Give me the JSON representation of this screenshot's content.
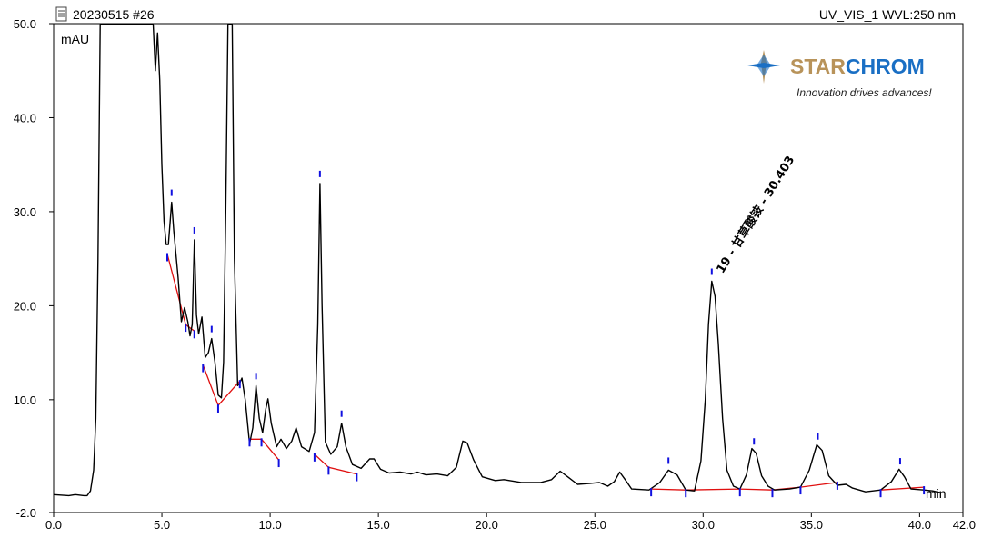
{
  "chart_data": {
    "type": "line",
    "sample_id": "20230515 #26",
    "channel": "UV_VIS_1 WVL:250 nm",
    "ylabel": "mAU",
    "xlabel": "min",
    "xlim": [
      0,
      42.0
    ],
    "ylim": [
      -2.0,
      50.0
    ],
    "x_ticks": [
      "0.0",
      "5.0",
      "10.0",
      "15.0",
      "20.0",
      "25.0",
      "30.0",
      "35.0",
      "40.0",
      "42.0"
    ],
    "y_ticks": [
      "-2.0",
      "10.0",
      "20.0",
      "30.0",
      "40.0",
      "50.0"
    ],
    "colors": {
      "trace": "#000000",
      "baseline": "#e01010",
      "marker": "#1010e0",
      "logo_gold": "#b8935a",
      "logo_blue": "#1a6fc4"
    },
    "logo": {
      "part1": "STAR",
      "part2": "CHROM",
      "tagline": "Innovation drives advances!"
    },
    "annotated_peak": {
      "label": "19 - 甘草酸铵 - 30.403",
      "rt": 30.403,
      "height": 22.6
    },
    "series": [
      {
        "points": [
          [
            0,
            -0.1
          ],
          [
            0.7,
            -0.2
          ],
          [
            1.0,
            -0.1
          ],
          [
            1.4,
            -0.2
          ],
          [
            1.55,
            -0.2
          ],
          [
            1.7,
            0.3
          ],
          [
            1.85,
            2.5
          ],
          [
            1.95,
            8
          ],
          [
            2.05,
            25
          ],
          [
            2.15,
            50
          ],
          [
            4.6,
            50
          ],
          [
            4.7,
            45
          ],
          [
            4.8,
            49
          ],
          [
            4.9,
            44
          ],
          [
            5.0,
            35
          ],
          [
            5.1,
            29
          ],
          [
            5.2,
            26.5
          ],
          [
            5.3,
            26.5
          ],
          [
            5.45,
            31
          ],
          [
            5.55,
            28
          ],
          [
            5.75,
            23
          ],
          [
            5.9,
            18.3
          ],
          [
            6.05,
            19.8
          ],
          [
            6.2,
            18.3
          ],
          [
            6.3,
            16.8
          ],
          [
            6.4,
            18
          ],
          [
            6.5,
            27
          ],
          [
            6.6,
            19
          ],
          [
            6.7,
            17
          ],
          [
            6.85,
            18.8
          ],
          [
            7.0,
            14.5
          ],
          [
            7.15,
            15
          ],
          [
            7.3,
            16.5
          ],
          [
            7.45,
            14
          ],
          [
            7.6,
            10.5
          ],
          [
            7.75,
            10.2
          ],
          [
            7.85,
            14
          ],
          [
            7.95,
            30
          ],
          [
            8.05,
            50
          ],
          [
            8.25,
            50
          ],
          [
            8.35,
            25
          ],
          [
            8.5,
            11.5
          ],
          [
            8.6,
            11.8
          ],
          [
            8.7,
            12.3
          ],
          [
            8.85,
            10
          ],
          [
            9.05,
            5.3
          ],
          [
            9.2,
            7
          ],
          [
            9.35,
            11.5
          ],
          [
            9.5,
            8
          ],
          [
            9.65,
            6.5
          ],
          [
            9.8,
            9
          ],
          [
            9.9,
            10.1
          ],
          [
            10.05,
            7.5
          ],
          [
            10.3,
            5
          ],
          [
            10.5,
            5.8
          ],
          [
            10.75,
            4.8
          ],
          [
            11.0,
            5.6
          ],
          [
            11.2,
            7
          ],
          [
            11.45,
            5
          ],
          [
            11.8,
            4.5
          ],
          [
            12.05,
            6.5
          ],
          [
            12.2,
            18
          ],
          [
            12.3,
            33
          ],
          [
            12.4,
            20
          ],
          [
            12.55,
            5.5
          ],
          [
            12.8,
            4.2
          ],
          [
            13.1,
            5
          ],
          [
            13.3,
            7.5
          ],
          [
            13.5,
            5
          ],
          [
            13.8,
            3.1
          ],
          [
            14.2,
            2.7
          ],
          [
            14.6,
            3.7
          ],
          [
            14.8,
            3.7
          ],
          [
            15.1,
            2.6
          ],
          [
            15.5,
            2.2
          ],
          [
            16.0,
            2.3
          ],
          [
            16.5,
            2.1
          ],
          [
            16.8,
            2.3
          ],
          [
            17.2,
            2.0
          ],
          [
            17.7,
            2.1
          ],
          [
            18.2,
            1.9
          ],
          [
            18.6,
            2.8
          ],
          [
            18.9,
            5.6
          ],
          [
            19.1,
            5.4
          ],
          [
            19.4,
            3.6
          ],
          [
            19.8,
            1.8
          ],
          [
            20.4,
            1.4
          ],
          [
            20.8,
            1.5
          ],
          [
            21.6,
            1.2
          ],
          [
            22.5,
            1.2
          ],
          [
            23.0,
            1.5
          ],
          [
            23.4,
            2.4
          ],
          [
            23.8,
            1.7
          ],
          [
            24.2,
            1.0
          ],
          [
            24.8,
            1.1
          ],
          [
            25.2,
            1.2
          ],
          [
            25.6,
            0.8
          ],
          [
            25.9,
            1.3
          ],
          [
            26.15,
            2.3
          ],
          [
            26.4,
            1.5
          ],
          [
            26.7,
            0.5
          ],
          [
            27.5,
            0.4
          ],
          [
            28.0,
            1.2
          ],
          [
            28.4,
            2.5
          ],
          [
            28.8,
            2.0
          ],
          [
            29.2,
            0.4
          ],
          [
            29.6,
            0.3
          ],
          [
            29.9,
            3.5
          ],
          [
            30.1,
            10
          ],
          [
            30.25,
            18
          ],
          [
            30.4,
            22.6
          ],
          [
            30.55,
            21
          ],
          [
            30.7,
            16
          ],
          [
            30.9,
            8
          ],
          [
            31.1,
            2.5
          ],
          [
            31.4,
            0.8
          ],
          [
            31.7,
            0.5
          ],
          [
            32.0,
            2
          ],
          [
            32.25,
            4.8
          ],
          [
            32.45,
            4.3
          ],
          [
            32.7,
            1.9
          ],
          [
            33.0,
            0.8
          ],
          [
            33.3,
            0.4
          ],
          [
            34.0,
            0.5
          ],
          [
            34.5,
            0.7
          ],
          [
            34.9,
            2.5
          ],
          [
            35.25,
            5.2
          ],
          [
            35.5,
            4.6
          ],
          [
            35.8,
            1.9
          ],
          [
            36.2,
            0.9
          ],
          [
            36.6,
            1.0
          ],
          [
            36.9,
            0.6
          ],
          [
            37.5,
            0.2
          ],
          [
            38.2,
            0.4
          ],
          [
            38.7,
            1.3
          ],
          [
            39.05,
            2.6
          ],
          [
            39.3,
            1.8
          ],
          [
            39.6,
            0.5
          ],
          [
            40.2,
            0.4
          ],
          [
            40.6,
            0.3
          ],
          [
            41.0,
            0.1
          ]
        ]
      }
    ],
    "baselines": [
      [
        [
          5.25,
          25.5
        ],
        [
          6.1,
          18.0
        ],
        [
          6.5,
          17.3
        ]
      ],
      [
        [
          6.9,
          13.7
        ],
        [
          7.6,
          9.4
        ],
        [
          8.6,
          12.0
        ]
      ],
      [
        [
          9.05,
          5.8
        ],
        [
          9.6,
          5.8
        ],
        [
          10.4,
          3.6
        ]
      ],
      [
        [
          12.05,
          4.2
        ],
        [
          12.7,
          2.8
        ],
        [
          14.0,
          2.1
        ]
      ],
      [
        [
          27.6,
          0.5
        ],
        [
          29.2,
          0.4
        ],
        [
          31.7,
          0.5
        ],
        [
          33.2,
          0.4
        ],
        [
          34.5,
          0.7
        ],
        [
          36.2,
          1.2
        ]
      ],
      [
        [
          38.2,
          0.4
        ],
        [
          40.2,
          0.7
        ]
      ]
    ],
    "peak_markers": [
      5.45,
      6.5,
      7.3,
      9.35,
      12.3,
      13.3,
      28.4,
      30.4,
      32.35,
      35.3,
      39.1
    ],
    "boundary_markers": [
      [
        5.25,
        25.5
      ],
      [
        6.1,
        18.0
      ],
      [
        6.5,
        17.3
      ],
      [
        6.9,
        13.7
      ],
      [
        7.6,
        9.4
      ],
      [
        8.6,
        12.0
      ],
      [
        9.05,
        5.8
      ],
      [
        9.6,
        5.8
      ],
      [
        10.4,
        3.6
      ],
      [
        12.05,
        4.2
      ],
      [
        12.7,
        2.8
      ],
      [
        14.0,
        2.1
      ],
      [
        27.6,
        0.5
      ],
      [
        29.2,
        0.4
      ],
      [
        31.7,
        0.5
      ],
      [
        33.2,
        0.4
      ],
      [
        34.5,
        0.7
      ],
      [
        36.2,
        1.2
      ],
      [
        38.2,
        0.4
      ],
      [
        40.2,
        0.7
      ]
    ]
  }
}
